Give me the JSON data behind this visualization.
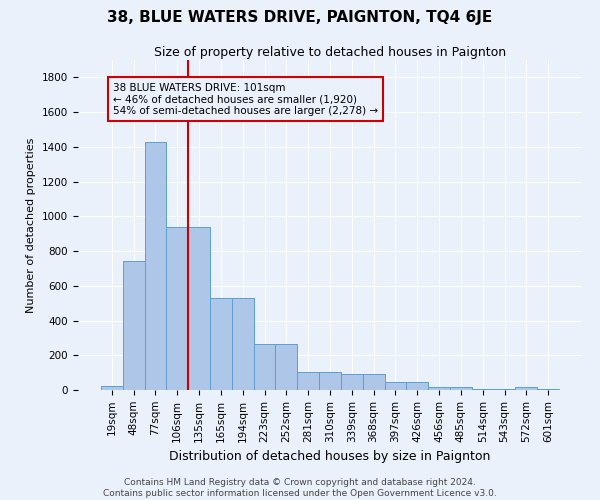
{
  "title": "38, BLUE WATERS DRIVE, PAIGNTON, TQ4 6JE",
  "subtitle": "Size of property relative to detached houses in Paignton",
  "xlabel": "Distribution of detached houses by size in Paignton",
  "ylabel": "Number of detached properties",
  "footer": "Contains HM Land Registry data © Crown copyright and database right 2024.\nContains public sector information licensed under the Open Government Licence v3.0.",
  "bar_labels": [
    "19sqm",
    "48sqm",
    "77sqm",
    "106sqm",
    "135sqm",
    "165sqm",
    "194sqm",
    "223sqm",
    "252sqm",
    "281sqm",
    "310sqm",
    "339sqm",
    "368sqm",
    "397sqm",
    "426sqm",
    "456sqm",
    "485sqm",
    "514sqm",
    "543sqm",
    "572sqm",
    "601sqm"
  ],
  "bar_values": [
    25,
    740,
    1430,
    940,
    940,
    530,
    530,
    265,
    265,
    105,
    105,
    90,
    90,
    45,
    45,
    20,
    20,
    5,
    5,
    15,
    5
  ],
  "bar_color": "#aec6e8",
  "bar_edgecolor": "#5a9fd4",
  "annotation_text": "38 BLUE WATERS DRIVE: 101sqm\n← 46% of detached houses are smaller (1,920)\n54% of semi-detached houses are larger (2,278) →",
  "redline_x": 3.5,
  "ylim": [
    0,
    1900
  ],
  "yticks": [
    0,
    200,
    400,
    600,
    800,
    1000,
    1200,
    1400,
    1600,
    1800
  ],
  "background_color": "#eaf1fb",
  "grid_color": "#ffffff",
  "annotation_box_edgecolor": "#cc0000",
  "redline_color": "#cc0000",
  "title_fontsize": 11,
  "subtitle_fontsize": 9,
  "ylabel_fontsize": 8,
  "xlabel_fontsize": 9,
  "tick_fontsize": 7.5,
  "footer_fontsize": 6.5
}
